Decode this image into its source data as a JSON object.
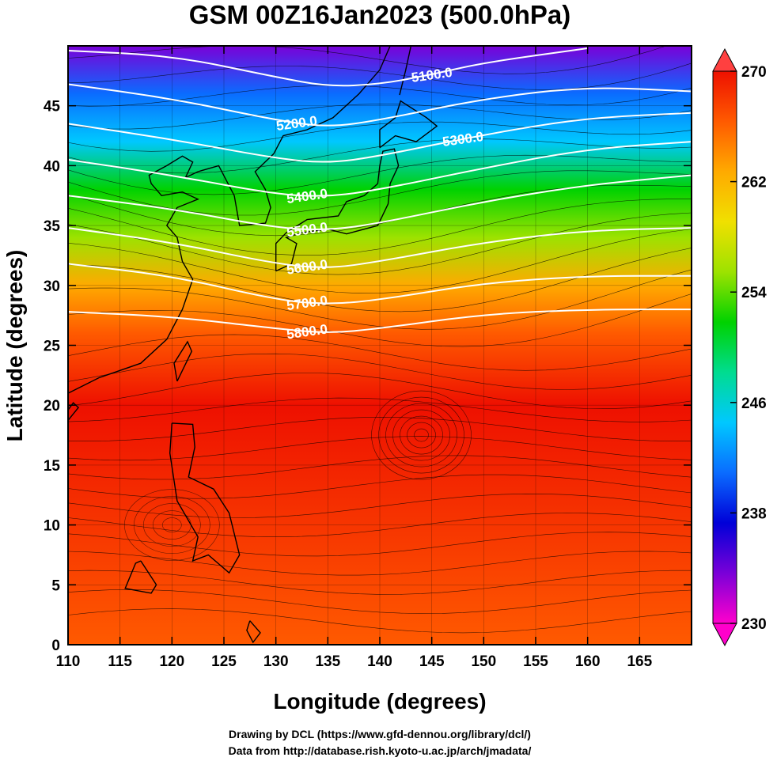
{
  "chart_data": {
    "type": "heatmap",
    "title": "GSM 00Z16Jan2023 (500.0hPa)",
    "xlabel": "Longitude (degrees)",
    "ylabel": "Latitude  (degrees)",
    "xlim": [
      110,
      170
    ],
    "ylim": [
      0,
      50
    ],
    "x_ticks": [
      "110",
      "115",
      "120",
      "125",
      "130",
      "135",
      "140",
      "145",
      "150",
      "155",
      "160",
      "165"
    ],
    "y_ticks": [
      "0",
      "5",
      "10",
      "15",
      "20",
      "25",
      "30",
      "35",
      "40",
      "45"
    ],
    "colorbar": {
      "range": [
        230,
        270
      ],
      "tick_labels": [
        "230",
        "238",
        "246",
        "254",
        "262",
        "270"
      ],
      "extend": "both",
      "colors": [
        "#ff00cc",
        "#7a00d8",
        "#0000d8",
        "#0a6cff",
        "#00c8ff",
        "#00dc90",
        "#00d200",
        "#9de200",
        "#f0e000",
        "#ffaa00",
        "#ff5a00",
        "#ee1000"
      ]
    },
    "field_description_stops": [
      {
        "lat": 50,
        "value": 233
      },
      {
        "lat": 46,
        "value": 240
      },
      {
        "lat": 42,
        "value": 245
      },
      {
        "lat": 38,
        "value": 250
      },
      {
        "lat": 34,
        "value": 256
      },
      {
        "lat": 30,
        "value": 262
      },
      {
        "lat": 26,
        "value": 266
      },
      {
        "lat": 20,
        "value": 269
      },
      {
        "lat": 0,
        "value": 268
      }
    ],
    "contours": [
      {
        "label": "5100.0",
        "value": 5100,
        "points": [
          [
            110,
            49.6
          ],
          [
            120,
            49.2
          ],
          [
            130,
            47.4
          ],
          [
            135,
            46.6
          ],
          [
            140,
            46.8
          ],
          [
            145,
            47.6
          ],
          [
            150,
            48.6
          ],
          [
            160,
            49.8
          ]
        ]
      },
      {
        "label": "5200.0",
        "value": 5200,
        "points": [
          [
            110,
            46.8
          ],
          [
            120,
            45.6
          ],
          [
            130,
            43.8
          ],
          [
            135,
            43.2
          ],
          [
            140,
            43.8
          ],
          [
            150,
            45.6
          ],
          [
            160,
            46.6
          ],
          [
            170,
            46.2
          ]
        ]
      },
      {
        "label": "5300.0",
        "value": 5300,
        "points": [
          [
            110,
            43.5
          ],
          [
            120,
            42.2
          ],
          [
            130,
            40.6
          ],
          [
            135,
            40.2
          ],
          [
            140,
            40.8
          ],
          [
            150,
            42.6
          ],
          [
            160,
            44.0
          ],
          [
            170,
            44.4
          ]
        ]
      },
      {
        "label": "5400.0",
        "value": 5400,
        "points": [
          [
            110,
            40.5
          ],
          [
            120,
            39.2
          ],
          [
            130,
            37.6
          ],
          [
            135,
            37.4
          ],
          [
            140,
            38.0
          ],
          [
            150,
            39.8
          ],
          [
            160,
            41.4
          ],
          [
            170,
            42.0
          ]
        ]
      },
      {
        "label": "5500.0",
        "value": 5500,
        "points": [
          [
            110,
            37.5
          ],
          [
            120,
            36.4
          ],
          [
            130,
            34.8
          ],
          [
            135,
            34.6
          ],
          [
            140,
            35.2
          ],
          [
            150,
            37.0
          ],
          [
            160,
            38.4
          ],
          [
            170,
            39.2
          ]
        ]
      },
      {
        "label": "5600.0",
        "value": 5600,
        "points": [
          [
            110,
            34.8
          ],
          [
            120,
            33.6
          ],
          [
            130,
            31.8
          ],
          [
            135,
            31.4
          ],
          [
            140,
            32.0
          ],
          [
            150,
            33.6
          ],
          [
            160,
            34.6
          ],
          [
            170,
            34.8
          ]
        ]
      },
      {
        "label": "5700.0",
        "value": 5700,
        "points": [
          [
            110,
            31.8
          ],
          [
            120,
            30.8
          ],
          [
            130,
            28.8
          ],
          [
            135,
            28.4
          ],
          [
            140,
            28.8
          ],
          [
            150,
            30.2
          ],
          [
            160,
            30.8
          ],
          [
            170,
            30.8
          ]
        ]
      },
      {
        "label": "5800.0",
        "value": 5800,
        "points": [
          [
            110,
            27.8
          ],
          [
            120,
            27.4
          ],
          [
            130,
            26.4
          ],
          [
            135,
            26.0
          ],
          [
            140,
            26.4
          ],
          [
            150,
            27.6
          ],
          [
            160,
            28.0
          ],
          [
            170,
            28.0
          ]
        ]
      }
    ]
  },
  "credits": {
    "line1": "Drawing by DCL (https://www.gfd-dennou.org/library/dcl/)",
    "line2": "Data from http://database.rish.kyoto-u.ac.jp/arch/jmadata/"
  }
}
